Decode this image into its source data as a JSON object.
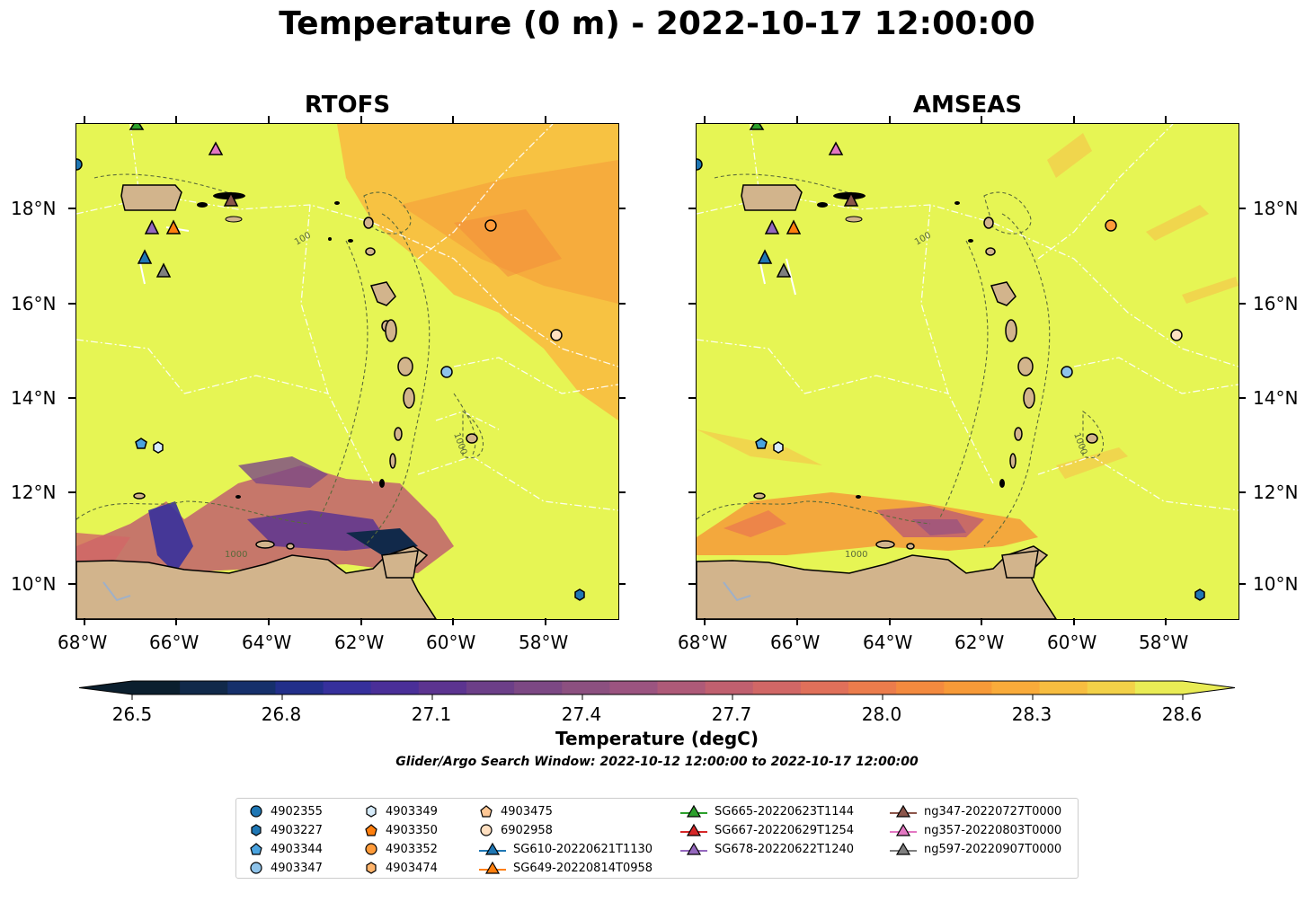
{
  "figure": {
    "title": "Temperature (0 m) - 2022-10-17 12:00:00",
    "panels": [
      {
        "title": "RTOFS"
      },
      {
        "title": "AMSEAS"
      }
    ],
    "lon_ticks": [
      "68°W",
      "66°W",
      "64°W",
      "62°W",
      "60°W",
      "58°W"
    ],
    "lat_ticks": [
      "18°N",
      "16°N",
      "14°N",
      "12°N",
      "10°N"
    ],
    "colorbar": {
      "label": "Temperature (degC)",
      "ticks": [
        "26.5",
        "26.8",
        "27.1",
        "27.4",
        "27.7",
        "28.0",
        "28.3",
        "28.6"
      ],
      "colors": [
        "#0b1f2e",
        "#11294a",
        "#16306b",
        "#222f8a",
        "#36309c",
        "#4a2f98",
        "#5c3490",
        "#6c3f88",
        "#7c4884",
        "#8c5080",
        "#9b5480",
        "#ae5a78",
        "#c0606f",
        "#d16766",
        "#e0705a",
        "#eb7c4c",
        "#f38a3f",
        "#f79a38",
        "#f9ab3a",
        "#f7bd40",
        "#f2d148",
        "#e9ec55"
      ],
      "range": [
        26.5,
        28.6
      ]
    },
    "search_window": "Glider/Argo Search Window: 2022-10-12 12:00:00 to 2022-10-17 12:00:00",
    "contour_labels": [
      "100",
      "1000"
    ]
  },
  "legend": [
    {
      "label": "4902355",
      "marker": "circle",
      "color": "#1f77b4"
    },
    {
      "label": "4903227",
      "marker": "hexagon",
      "color": "#1f77b4"
    },
    {
      "label": "4903344",
      "marker": "pentagon",
      "color": "#4aa3df"
    },
    {
      "label": "4903347",
      "marker": "circle",
      "color": "#8ec3ea"
    },
    {
      "label": "4903349",
      "marker": "hexagon",
      "color": "#d6ebfa"
    },
    {
      "label": "4903350",
      "marker": "pentagon",
      "color": "#ff7f0e"
    },
    {
      "label": "4903352",
      "marker": "circle",
      "color": "#ff9b3a"
    },
    {
      "label": "4903474",
      "marker": "hexagon",
      "color": "#ffb46b"
    },
    {
      "label": "4903475",
      "marker": "pentagon",
      "color": "#ffc896"
    },
    {
      "label": "6902958",
      "marker": "circle",
      "color": "#ffdfc0"
    },
    {
      "label": "SG610-20220621T1130",
      "marker": "triangle-line",
      "color": "#1f77b4"
    },
    {
      "label": "SG649-20220814T0958",
      "marker": "triangle-line",
      "color": "#ff7f0e"
    },
    {
      "label": "SG665-20220623T1144",
      "marker": "triangle-line",
      "color": "#2ca02c"
    },
    {
      "label": "SG667-20220629T1254",
      "marker": "triangle-line",
      "color": "#d62728"
    },
    {
      "label": "SG678-20220622T1240",
      "marker": "triangle-line",
      "color": "#9467bd"
    },
    {
      "label": "ng347-20220727T0000",
      "marker": "triangle-line",
      "color": "#8c564b"
    },
    {
      "label": "ng357-20220803T0000",
      "marker": "triangle-line",
      "color": "#e377c2"
    },
    {
      "label": "ng597-20220907T0000",
      "marker": "triangle-line",
      "color": "#7f7f7f"
    }
  ],
  "platform_positions": [
    {
      "id": "4902355",
      "lon": -68.2,
      "lat": 18.95
    },
    {
      "id": "4903227",
      "lon": -57.1,
      "lat": 9.8
    },
    {
      "id": "4903344",
      "lon": -66.8,
      "lat": 13.05
    },
    {
      "id": "4903347",
      "lon": -60.1,
      "lat": 14.55
    },
    {
      "id": "4903349",
      "lon": -66.4,
      "lat": 12.98
    },
    {
      "id": "4903352",
      "lon": -59.2,
      "lat": 17.65
    },
    {
      "id": "6902958",
      "lon": -57.7,
      "lat": 15.35
    },
    {
      "id": "SG610-20220621T1130",
      "lon": -66.75,
      "lat": 17.0
    },
    {
      "id": "SG649-20220814T0958",
      "lon": -66.1,
      "lat": 17.62
    },
    {
      "id": "SG665-20220623T1144",
      "lon": -66.9,
      "lat": 19.85
    },
    {
      "id": "SG678-20220622T1240",
      "lon": -66.55,
      "lat": 17.62
    },
    {
      "id": "ng347-20220727T0000",
      "lon": -64.8,
      "lat": 18.2
    },
    {
      "id": "ng357-20220803T0000",
      "lon": -65.1,
      "lat": 19.3
    },
    {
      "id": "ng597-20220907T0000",
      "lon": -66.35,
      "lat": 16.72
    }
  ]
}
